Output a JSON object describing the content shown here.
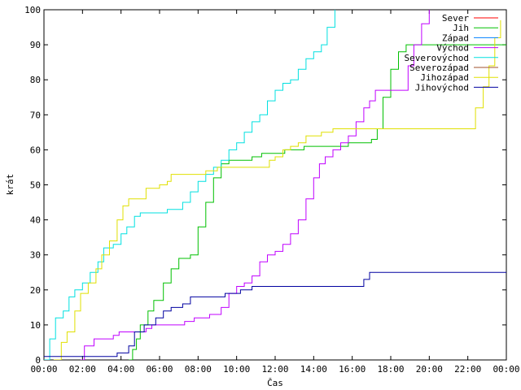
{
  "chart_data": {
    "type": "line",
    "title": "",
    "xlabel": "Čas",
    "ylabel": "krát",
    "xlim": [
      0,
      24
    ],
    "ylim": [
      0,
      100
    ],
    "grid": false,
    "legend_position": "top-right",
    "x_ticks": [
      0,
      2,
      4,
      6,
      8,
      10,
      12,
      14,
      16,
      18,
      20,
      22,
      24
    ],
    "x_tick_labels": [
      "00:00",
      "02:00",
      "04:00",
      "06:00",
      "08:00",
      "10:00",
      "12:00",
      "14:00",
      "16:00",
      "18:00",
      "20:00",
      "22:00",
      "00:00"
    ],
    "y_ticks": [
      0,
      10,
      20,
      30,
      40,
      50,
      60,
      70,
      80,
      90,
      100
    ],
    "y_tick_labels": [
      "0",
      "10",
      "20",
      "30",
      "40",
      "50",
      "60",
      "70",
      "80",
      "90",
      "100"
    ],
    "series": [
      {
        "name": "Sever",
        "color": "#ff0000",
        "points": []
      },
      {
        "name": "Jih",
        "color": "#00c000",
        "points": [
          [
            4.4,
            0
          ],
          [
            4.6,
            3
          ],
          [
            4.8,
            6
          ],
          [
            5.0,
            10
          ],
          [
            5.4,
            14
          ],
          [
            5.7,
            17
          ],
          [
            6.2,
            22
          ],
          [
            6.6,
            26
          ],
          [
            7.0,
            29
          ],
          [
            7.6,
            30
          ],
          [
            8.0,
            38
          ],
          [
            8.4,
            45
          ],
          [
            8.8,
            52
          ],
          [
            9.2,
            56
          ],
          [
            9.6,
            57
          ],
          [
            10.4,
            57
          ],
          [
            10.8,
            58
          ],
          [
            11.3,
            59
          ],
          [
            12.3,
            59
          ],
          [
            12.5,
            60
          ],
          [
            13.3,
            60
          ],
          [
            13.5,
            61
          ],
          [
            15.5,
            61
          ],
          [
            15.8,
            62
          ],
          [
            17.0,
            63
          ],
          [
            17.3,
            66
          ],
          [
            17.6,
            75
          ],
          [
            18.0,
            83
          ],
          [
            18.4,
            88
          ],
          [
            18.8,
            90
          ],
          [
            24,
            90
          ]
        ]
      },
      {
        "name": "Západ",
        "color": "#0080ff",
        "points": []
      },
      {
        "name": "Východ",
        "color": "#c000ff",
        "points": [
          [
            1.9,
            0
          ],
          [
            2.1,
            4
          ],
          [
            2.6,
            6
          ],
          [
            3.6,
            7
          ],
          [
            3.9,
            8
          ],
          [
            4.8,
            8
          ],
          [
            5.3,
            9
          ],
          [
            5.6,
            10
          ],
          [
            6.8,
            10
          ],
          [
            7.3,
            11
          ],
          [
            7.8,
            12
          ],
          [
            8.6,
            13
          ],
          [
            9.2,
            15
          ],
          [
            9.6,
            19
          ],
          [
            10.0,
            21
          ],
          [
            10.4,
            22
          ],
          [
            10.8,
            24
          ],
          [
            11.2,
            28
          ],
          [
            11.6,
            30
          ],
          [
            12.0,
            31
          ],
          [
            12.4,
            33
          ],
          [
            12.8,
            36
          ],
          [
            13.2,
            40
          ],
          [
            13.6,
            46
          ],
          [
            14.0,
            52
          ],
          [
            14.3,
            56
          ],
          [
            14.6,
            58
          ],
          [
            15.0,
            60
          ],
          [
            15.4,
            62
          ],
          [
            15.8,
            64
          ],
          [
            16.2,
            68
          ],
          [
            16.6,
            72
          ],
          [
            16.9,
            74
          ],
          [
            17.2,
            77
          ],
          [
            18.6,
            77
          ],
          [
            18.9,
            84
          ],
          [
            19.2,
            90
          ],
          [
            19.6,
            96
          ],
          [
            20.0,
            100
          ]
        ]
      },
      {
        "name": "Severovýchod",
        "color": "#00e0e0",
        "points": [
          [
            0,
            0
          ],
          [
            0.3,
            6
          ],
          [
            0.6,
            12
          ],
          [
            1.0,
            14
          ],
          [
            1.3,
            18
          ],
          [
            1.6,
            20
          ],
          [
            2.0,
            22
          ],
          [
            2.4,
            25
          ],
          [
            2.8,
            28
          ],
          [
            3.1,
            32
          ],
          [
            3.6,
            33
          ],
          [
            4.0,
            36
          ],
          [
            4.3,
            38
          ],
          [
            4.7,
            41
          ],
          [
            5.0,
            42
          ],
          [
            6.4,
            43
          ],
          [
            7.2,
            45
          ],
          [
            7.6,
            48
          ],
          [
            8.0,
            51
          ],
          [
            8.4,
            53
          ],
          [
            8.8,
            55
          ],
          [
            9.2,
            57
          ],
          [
            9.6,
            60
          ],
          [
            10.0,
            62
          ],
          [
            10.4,
            65
          ],
          [
            10.8,
            68
          ],
          [
            11.2,
            70
          ],
          [
            11.6,
            74
          ],
          [
            12.0,
            77
          ],
          [
            12.4,
            79
          ],
          [
            12.8,
            80
          ],
          [
            13.2,
            83
          ],
          [
            13.6,
            86
          ],
          [
            14.0,
            88
          ],
          [
            14.4,
            90
          ],
          [
            14.7,
            95
          ],
          [
            15.1,
            100
          ]
        ]
      },
      {
        "name": "Severozápad",
        "color": "#a0522d",
        "points": []
      },
      {
        "name": "Jihozápad",
        "color": "#e0e000",
        "points": [
          [
            0.5,
            0
          ],
          [
            0.9,
            5
          ],
          [
            1.2,
            8
          ],
          [
            1.6,
            14
          ],
          [
            1.9,
            19
          ],
          [
            2.3,
            22
          ],
          [
            2.7,
            26
          ],
          [
            3.0,
            30
          ],
          [
            3.4,
            34
          ],
          [
            3.8,
            40
          ],
          [
            4.1,
            44
          ],
          [
            4.4,
            46
          ],
          [
            5.1,
            46
          ],
          [
            5.3,
            49
          ],
          [
            6.0,
            50
          ],
          [
            6.4,
            51
          ],
          [
            6.6,
            53
          ],
          [
            8.0,
            53
          ],
          [
            8.4,
            54
          ],
          [
            9.0,
            55
          ],
          [
            11.4,
            55
          ],
          [
            11.7,
            57
          ],
          [
            12.0,
            58
          ],
          [
            12.4,
            60
          ],
          [
            12.8,
            61
          ],
          [
            13.2,
            62
          ],
          [
            13.6,
            64
          ],
          [
            14.4,
            65
          ],
          [
            15.0,
            66
          ],
          [
            22.1,
            66
          ],
          [
            22.4,
            72
          ],
          [
            22.8,
            78
          ],
          [
            23.1,
            84
          ],
          [
            23.4,
            92
          ],
          [
            23.7,
            97
          ]
        ]
      },
      {
        "name": "Jihovýchod",
        "color": "#0000a0",
        "points": [
          [
            0,
            1
          ],
          [
            3.6,
            1
          ],
          [
            3.8,
            2
          ],
          [
            4.4,
            4
          ],
          [
            4.7,
            8
          ],
          [
            5.2,
            10
          ],
          [
            5.8,
            12
          ],
          [
            6.2,
            14
          ],
          [
            6.6,
            15
          ],
          [
            7.2,
            16
          ],
          [
            7.6,
            18
          ],
          [
            9.2,
            18
          ],
          [
            9.4,
            19
          ],
          [
            10.2,
            20
          ],
          [
            10.8,
            21
          ],
          [
            16.4,
            21
          ],
          [
            16.6,
            23
          ],
          [
            16.9,
            25
          ],
          [
            24,
            25
          ]
        ]
      }
    ]
  }
}
